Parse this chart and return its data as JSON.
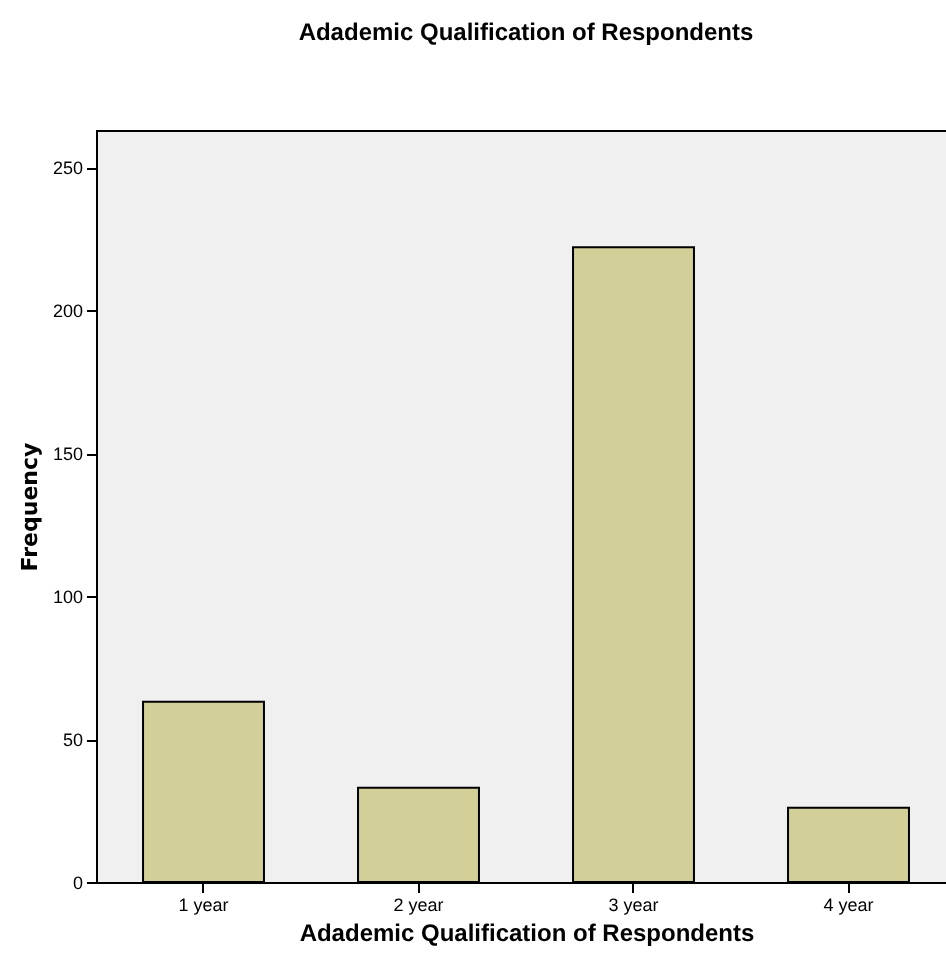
{
  "chart_data": {
    "type": "bar",
    "title": "Adademic Qualification of Respondents",
    "xlabel": "Adademic Qualification of Respondents",
    "ylabel": "Frequency",
    "categories": [
      "1 year",
      "2 year",
      "3 year",
      "4 year"
    ],
    "values": [
      63,
      33,
      222,
      26
    ],
    "color": "#d3cf98",
    "ylim": [
      0,
      263
    ],
    "yticks": [
      0,
      50,
      100,
      150,
      200,
      250
    ],
    "grid": false
  }
}
